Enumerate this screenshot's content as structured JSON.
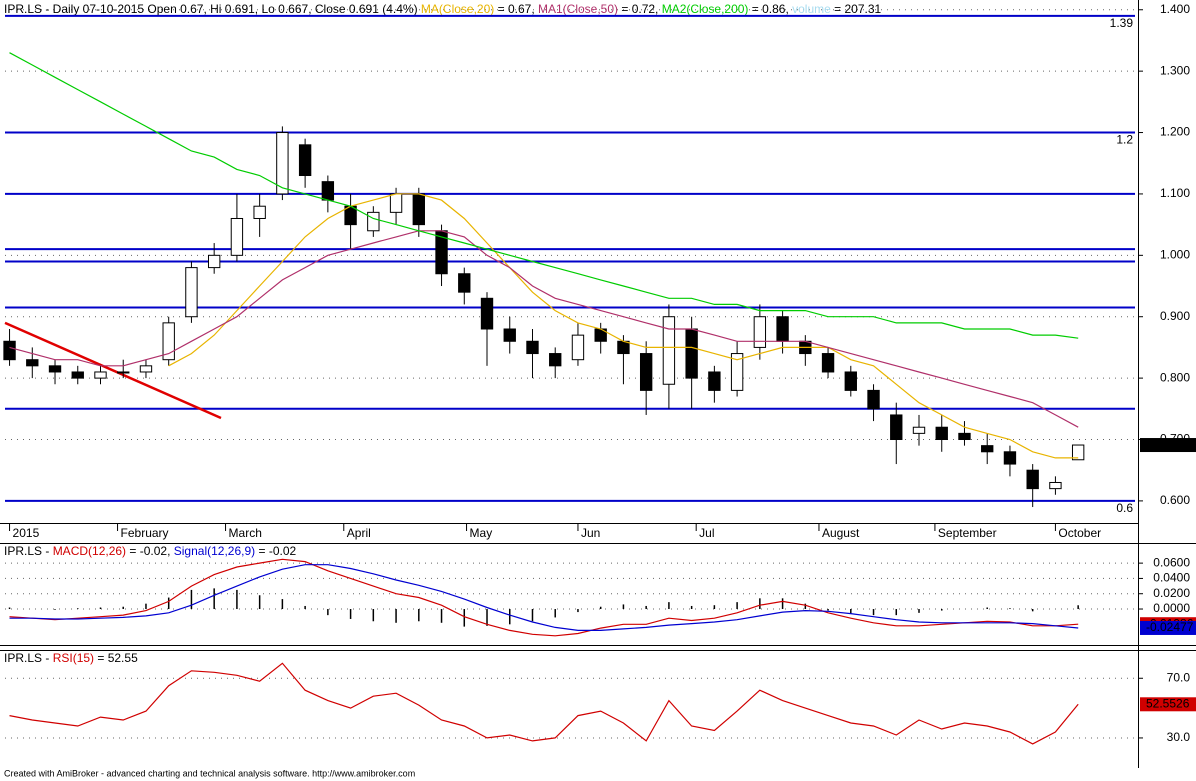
{
  "chart_data": [
    {
      "type": "candlestick",
      "title": "IPR.LS - Daily 07-10-2015 Open 0.67, Hi 0.691, Lo 0.667, Close 0.691 (4.4%) ",
      "xlim": [
        -0.2,
        49.5
      ],
      "xticks": [
        {
          "value": 0,
          "label": "2015"
        },
        {
          "value": 4.75,
          "label": "February"
        },
        {
          "value": 9.5,
          "label": "March"
        },
        {
          "value": 14.7,
          "label": "April"
        },
        {
          "value": 20.1,
          "label": "May"
        },
        {
          "value": 25.0,
          "label": "Jun"
        },
        {
          "value": 30.2,
          "label": "Jul"
        },
        {
          "value": 35.6,
          "label": "August"
        },
        {
          "value": 40.7,
          "label": "September"
        },
        {
          "value": 46.0,
          "label": "October"
        }
      ],
      "ylim": [
        0.564,
        1.411
      ],
      "yticks": [
        {
          "value": 0.6,
          "label": "0.600"
        },
        {
          "value": 0.7,
          "label": "0.700"
        },
        {
          "value": 0.8,
          "label": "0.800"
        },
        {
          "value": 0.9,
          "label": "0.900"
        },
        {
          "value": 1.0,
          "label": "1.000"
        },
        {
          "value": 1.1,
          "label": "1.100"
        },
        {
          "value": 1.2,
          "label": "1.200"
        },
        {
          "value": 1.3,
          "label": "1.300"
        },
        {
          "value": 1.4,
          "label": "1.400"
        }
      ],
      "grid": true,
      "open": [
        0.86,
        0.83,
        0.82,
        0.81,
        0.8,
        0.81,
        0.81,
        0.83,
        0.9,
        0.98,
        1.0,
        1.06,
        1.1,
        1.18,
        1.12,
        1.08,
        1.04,
        1.07,
        1.1,
        1.04,
        0.97,
        0.93,
        0.88,
        0.86,
        0.84,
        0.83,
        0.88,
        0.86,
        0.84,
        0.79,
        0.88,
        0.81,
        0.78,
        0.85,
        0.9,
        0.86,
        0.84,
        0.81,
        0.78,
        0.74,
        0.71,
        0.72,
        0.71,
        0.69,
        0.68,
        0.65,
        0.62,
        0.667
      ],
      "high": [
        0.88,
        0.85,
        0.83,
        0.82,
        0.82,
        0.83,
        0.83,
        0.9,
        0.99,
        1.02,
        1.1,
        1.1,
        1.21,
        1.19,
        1.13,
        1.1,
        1.08,
        1.11,
        1.11,
        1.05,
        0.98,
        0.94,
        0.9,
        0.88,
        0.85,
        0.89,
        0.89,
        0.87,
        0.86,
        0.92,
        0.9,
        0.82,
        0.86,
        0.92,
        0.91,
        0.87,
        0.85,
        0.82,
        0.79,
        0.76,
        0.74,
        0.74,
        0.73,
        0.71,
        0.69,
        0.66,
        0.64,
        0.691
      ],
      "low": [
        0.82,
        0.8,
        0.79,
        0.79,
        0.79,
        0.8,
        0.8,
        0.82,
        0.89,
        0.97,
        0.99,
        1.03,
        1.09,
        1.11,
        1.07,
        1.01,
        1.03,
        1.05,
        1.03,
        0.95,
        0.92,
        0.82,
        0.84,
        0.8,
        0.8,
        0.82,
        0.84,
        0.79,
        0.74,
        0.75,
        0.75,
        0.76,
        0.77,
        0.83,
        0.84,
        0.82,
        0.8,
        0.77,
        0.73,
        0.66,
        0.69,
        0.68,
        0.69,
        0.66,
        0.64,
        0.59,
        0.61,
        0.667
      ],
      "close": [
        0.83,
        0.82,
        0.81,
        0.8,
        0.81,
        0.81,
        0.82,
        0.89,
        0.98,
        1.0,
        1.06,
        1.08,
        1.2,
        1.13,
        1.09,
        1.05,
        1.07,
        1.1,
        1.05,
        0.97,
        0.94,
        0.88,
        0.86,
        0.84,
        0.82,
        0.87,
        0.86,
        0.84,
        0.78,
        0.9,
        0.8,
        0.78,
        0.84,
        0.9,
        0.86,
        0.84,
        0.81,
        0.78,
        0.75,
        0.7,
        0.72,
        0.7,
        0.7,
        0.68,
        0.66,
        0.62,
        0.63,
        0.691
      ],
      "last_label": "0.691",
      "series": [
        {
          "name": "MA(Close,20)",
          "header_value": " = 0.67, ",
          "color": "#e8b400",
          "values": [
            null,
            null,
            null,
            null,
            null,
            null,
            null,
            0.82,
            0.84,
            0.87,
            0.91,
            0.95,
            0.99,
            1.03,
            1.06,
            1.08,
            1.09,
            1.1,
            1.1,
            1.09,
            1.06,
            1.02,
            0.98,
            0.94,
            0.91,
            0.89,
            0.88,
            0.86,
            0.85,
            0.85,
            0.85,
            0.84,
            0.83,
            0.84,
            0.85,
            0.85,
            0.85,
            0.83,
            0.82,
            0.79,
            0.76,
            0.74,
            0.72,
            0.71,
            0.7,
            0.68,
            0.67,
            0.67
          ]
        },
        {
          "name": "MA1(Close,50)",
          "header_value": " = 0.72, ",
          "color": "#b0306a",
          "values": [
            0.85,
            0.84,
            0.83,
            0.83,
            0.82,
            0.82,
            0.83,
            0.84,
            0.86,
            0.88,
            0.9,
            0.93,
            0.96,
            0.98,
            1.0,
            1.01,
            1.02,
            1.03,
            1.04,
            1.04,
            1.03,
            1.0,
            0.98,
            0.95,
            0.93,
            0.92,
            0.91,
            0.9,
            0.89,
            0.88,
            0.88,
            0.87,
            0.86,
            0.86,
            0.86,
            0.86,
            0.85,
            0.84,
            0.83,
            0.82,
            0.81,
            0.8,
            0.79,
            0.78,
            0.77,
            0.76,
            0.74,
            0.72
          ]
        },
        {
          "name": "MA2(Close,200)",
          "header_value": " = 0.86, ",
          "color": "#00cc00",
          "values": [
            1.33,
            1.31,
            1.29,
            1.27,
            1.25,
            1.23,
            1.21,
            1.19,
            1.17,
            1.16,
            1.14,
            1.13,
            1.11,
            1.1,
            1.09,
            1.08,
            1.06,
            1.05,
            1.04,
            1.03,
            1.02,
            1.01,
            1.0,
            0.99,
            0.98,
            0.97,
            0.96,
            0.95,
            0.94,
            0.93,
            0.93,
            0.92,
            0.92,
            0.91,
            0.91,
            0.91,
            0.9,
            0.9,
            0.9,
            0.89,
            0.89,
            0.89,
            0.88,
            0.88,
            0.88,
            0.87,
            0.87,
            0.865
          ]
        }
      ],
      "volume_name": "volume",
      "volume_header": " = 207.31",
      "volume_color": "#a8dcf0",
      "levels": [
        1.39,
        1.2,
        1.1,
        1.01,
        0.99,
        0.915,
        0.75,
        0.6
      ],
      "level_color": "#0000c8",
      "level_labels": [
        1.39,
        1.2,
        0.6
      ],
      "trendline": {
        "color": "#e00000",
        "x": [
          -0.2,
          9.3
        ],
        "y": [
          0.89,
          0.735
        ]
      }
    },
    {
      "type": "line",
      "title": "IPR.LS - ",
      "xlim": [
        -0.2,
        49.5
      ],
      "ylim": [
        -0.0405,
        0.0837
      ],
      "yticks": [
        {
          "value": 0,
          "label": "0.0000"
        },
        {
          "value": 0.02,
          "label": "0.0200"
        },
        {
          "value": 0.04,
          "label": "0.0400"
        },
        {
          "value": 0.06,
          "label": "0.0600"
        }
      ],
      "grid": true,
      "histogram": true,
      "series": [
        {
          "name": "MACD(12,26)",
          "header_value": " = -0.02, ",
          "color": "#d00000",
          "last_label": "-0.01986",
          "values": [
            -0.01,
            -0.012,
            -0.014,
            -0.012,
            -0.01,
            -0.008,
            -0.002,
            0.01,
            0.03,
            0.045,
            0.055,
            0.06,
            0.065,
            0.062,
            0.05,
            0.04,
            0.03,
            0.02,
            0.015,
            0.005,
            -0.01,
            -0.02,
            -0.028,
            -0.033,
            -0.035,
            -0.032,
            -0.025,
            -0.02,
            -0.02,
            -0.012,
            -0.015,
            -0.012,
            -0.005,
            0.005,
            0.01,
            0.005,
            -0.005,
            -0.012,
            -0.018,
            -0.022,
            -0.022,
            -0.02,
            -0.018,
            -0.016,
            -0.017,
            -0.022,
            -0.022,
            -0.01986
          ]
        },
        {
          "name": "Signal(12,26,9)",
          "header_value": " = -0.02",
          "color": "#0000d0",
          "last_label": "-0.02477",
          "values": [
            -0.012,
            -0.012,
            -0.013,
            -0.013,
            -0.012,
            -0.011,
            -0.009,
            -0.005,
            0.005,
            0.018,
            0.03,
            0.042,
            0.052,
            0.058,
            0.058,
            0.053,
            0.046,
            0.038,
            0.031,
            0.023,
            0.013,
            0.002,
            -0.008,
            -0.017,
            -0.024,
            -0.028,
            -0.028,
            -0.026,
            -0.024,
            -0.021,
            -0.019,
            -0.017,
            -0.014,
            -0.009,
            -0.004,
            -0.002,
            -0.003,
            -0.006,
            -0.01,
            -0.014,
            -0.017,
            -0.018,
            -0.018,
            -0.018,
            -0.018,
            -0.019,
            -0.022,
            -0.02477
          ]
        }
      ]
    },
    {
      "type": "line",
      "title": "IPR.LS - ",
      "xlim": [
        -0.2,
        49.5
      ],
      "ylim": [
        11.2,
        87.6
      ],
      "yticks": [
        {
          "value": 30,
          "label": "30.0"
        },
        {
          "value": 70,
          "label": "70.0"
        }
      ],
      "grid": true,
      "series": [
        {
          "name": "RSI(15)",
          "header_value": " = 52.55",
          "color": "#d00000",
          "last_label": "52.5526",
          "values": [
            45,
            42,
            40,
            38,
            44,
            42,
            48,
            65,
            75,
            74,
            72,
            68,
            80,
            62,
            55,
            50,
            58,
            60,
            52,
            42,
            38,
            30,
            32,
            28,
            30,
            45,
            48,
            40,
            28,
            55,
            38,
            35,
            48,
            62,
            55,
            50,
            45,
            40,
            38,
            32,
            42,
            36,
            40,
            38,
            34,
            26,
            34,
            52.5526
          ]
        }
      ]
    }
  ],
  "footer": "Created with AmiBroker - advanced charting and technical analysis software. http://www.amibroker.com"
}
